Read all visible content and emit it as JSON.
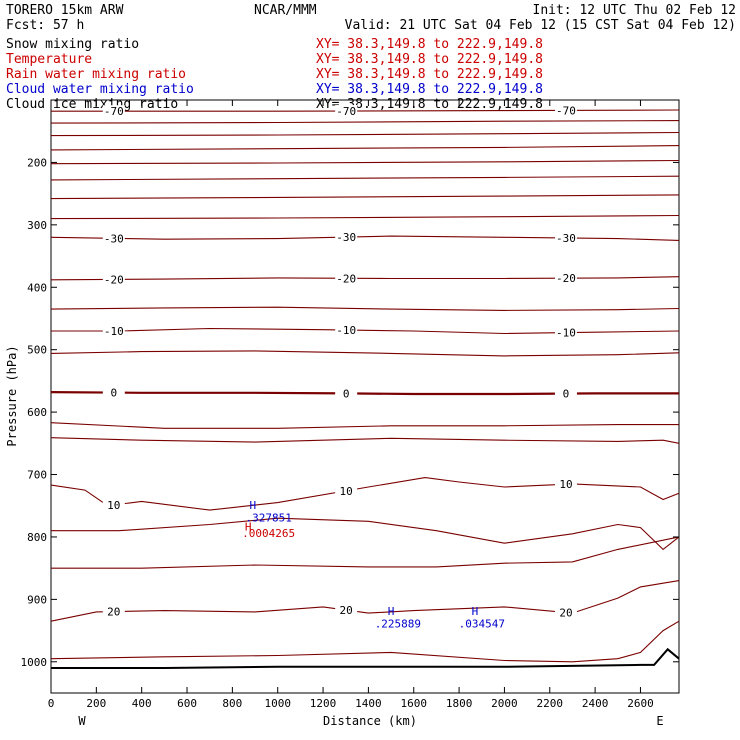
{
  "header": {
    "model": "TORERO  15km ARW",
    "center": "NCAR/MMM",
    "init": "Init: 12 UTC Thu 02 Feb 12",
    "fcst": "Fcst:   57 h",
    "valid": "Valid: 21 UTC Sat 04 Feb 12 (15 CST Sat 04 Feb 12)"
  },
  "fields": [
    {
      "name": "Snow mixing ratio",
      "xy": "XY=  38.3,149.8 to 222.9,149.8",
      "color": "#000000"
    },
    {
      "name": "Temperature",
      "xy": "XY=  38.3,149.8 to 222.9,149.8",
      "color": "#cc0000"
    },
    {
      "name": "Rain water mixing ratio",
      "xy": "XY=  38.3,149.8 to 222.9,149.8",
      "color": "#cc0000"
    },
    {
      "name": "Cloud water mixing ratio",
      "xy": "XY=  38.3,149.8 to 222.9,149.8",
      "color": "#0000cc"
    },
    {
      "name": "Cloud ice mixing ratio",
      "xy": "XY=  38.3,149.8 to 222.9,149.8",
      "color": "#000000"
    }
  ],
  "chart_data": {
    "type": "line",
    "xlabel": "Distance (km)",
    "ylabel": "Pressure (hPa)",
    "xlim": [
      0,
      2770
    ],
    "ylim": [
      1050,
      100
    ],
    "x_ticks": [
      0,
      200,
      400,
      600,
      800,
      1000,
      1200,
      1400,
      1600,
      1800,
      2000,
      2200,
      2400,
      2600
    ],
    "y_ticks": [
      200,
      300,
      400,
      500,
      600,
      700,
      800,
      900,
      1000
    ],
    "left_end_label": "W",
    "right_end_label": "E",
    "colors": {
      "temperature": "#7a0000",
      "cloud_water": "#0000cc",
      "rain": "#cc0000",
      "terrain": "#000000"
    },
    "temperature_contours": [
      {
        "value": -70,
        "points": [
          [
            0,
            118
          ],
          [
            1000,
            118
          ],
          [
            2000,
            117
          ],
          [
            2770,
            116
          ]
        ]
      },
      {
        "value": null,
        "points": [
          [
            0,
            137
          ],
          [
            1000,
            136
          ],
          [
            2000,
            134
          ],
          [
            2770,
            133
          ]
        ]
      },
      {
        "value": null,
        "points": [
          [
            0,
            157
          ],
          [
            1000,
            156
          ],
          [
            2000,
            154
          ],
          [
            2770,
            152
          ]
        ]
      },
      {
        "value": null,
        "points": [
          [
            0,
            180
          ],
          [
            1000,
            178
          ],
          [
            2000,
            176
          ],
          [
            2770,
            173
          ]
        ]
      },
      {
        "value": null,
        "points": [
          [
            0,
            202
          ],
          [
            1000,
            201
          ],
          [
            2000,
            199
          ],
          [
            2770,
            197
          ]
        ]
      },
      {
        "value": null,
        "points": [
          [
            0,
            228
          ],
          [
            1000,
            226
          ],
          [
            2000,
            224
          ],
          [
            2770,
            222
          ]
        ]
      },
      {
        "value": null,
        "points": [
          [
            0,
            258
          ],
          [
            1000,
            256
          ],
          [
            2000,
            254
          ],
          [
            2770,
            252
          ]
        ]
      },
      {
        "value": null,
        "points": [
          [
            0,
            290
          ],
          [
            1000,
            289
          ],
          [
            2000,
            287
          ],
          [
            2770,
            285
          ]
        ]
      },
      {
        "value": -30,
        "points": [
          [
            0,
            320
          ],
          [
            500,
            323
          ],
          [
            1000,
            322
          ],
          [
            1500,
            318
          ],
          [
            2000,
            320
          ],
          [
            2500,
            322
          ],
          [
            2770,
            325
          ]
        ]
      },
      {
        "value": -20,
        "points": [
          [
            0,
            388
          ],
          [
            500,
            387
          ],
          [
            1000,
            385
          ],
          [
            1500,
            386
          ],
          [
            2000,
            386
          ],
          [
            2500,
            385
          ],
          [
            2770,
            383
          ]
        ]
      },
      {
        "value": null,
        "points": [
          [
            0,
            435
          ],
          [
            500,
            433
          ],
          [
            1000,
            432
          ],
          [
            1500,
            435
          ],
          [
            2000,
            437
          ],
          [
            2500,
            436
          ],
          [
            2770,
            434
          ]
        ]
      },
      {
        "value": -10,
        "points": [
          [
            0,
            470
          ],
          [
            300,
            470
          ],
          [
            700,
            466
          ],
          [
            1200,
            468
          ],
          [
            1600,
            470
          ],
          [
            2000,
            474
          ],
          [
            2400,
            472
          ],
          [
            2770,
            470
          ]
        ]
      },
      {
        "value": null,
        "points": [
          [
            0,
            506
          ],
          [
            400,
            503
          ],
          [
            900,
            502
          ],
          [
            1500,
            506
          ],
          [
            2000,
            510
          ],
          [
            2500,
            508
          ],
          [
            2770,
            505
          ]
        ]
      },
      {
        "value": 0,
        "points": [
          [
            0,
            568
          ],
          [
            400,
            569
          ],
          [
            900,
            569
          ],
          [
            1300,
            570
          ],
          [
            1600,
            571
          ],
          [
            2000,
            571
          ],
          [
            2400,
            570
          ],
          [
            2770,
            570
          ]
        ]
      },
      {
        "value": null,
        "points": [
          [
            0,
            617
          ],
          [
            500,
            626
          ],
          [
            1000,
            626
          ],
          [
            1500,
            622
          ],
          [
            2000,
            622
          ],
          [
            2500,
            620
          ],
          [
            2770,
            620
          ]
        ]
      },
      {
        "value": null,
        "points": [
          [
            0,
            641
          ],
          [
            400,
            645
          ],
          [
            900,
            648
          ],
          [
            1500,
            642
          ],
          [
            2000,
            645
          ],
          [
            2500,
            647
          ],
          [
            2700,
            645
          ],
          [
            2770,
            650
          ]
        ]
      },
      {
        "value": 10,
        "points": [
          [
            0,
            717
          ],
          [
            150,
            725
          ],
          [
            250,
            750
          ],
          [
            400,
            743
          ],
          [
            700,
            757
          ],
          [
            1000,
            745
          ],
          [
            1400,
            720
          ],
          [
            1650,
            705
          ],
          [
            1800,
            712
          ],
          [
            2000,
            720
          ],
          [
            2300,
            715
          ],
          [
            2600,
            720
          ],
          [
            2700,
            740
          ],
          [
            2770,
            730
          ]
        ]
      },
      {
        "value": null,
        "points": [
          [
            0,
            790
          ],
          [
            300,
            790
          ],
          [
            700,
            780
          ],
          [
            1000,
            770
          ],
          [
            1400,
            775
          ],
          [
            1700,
            790
          ],
          [
            2000,
            810
          ],
          [
            2300,
            795
          ],
          [
            2500,
            780
          ],
          [
            2600,
            785
          ],
          [
            2700,
            820
          ],
          [
            2770,
            800
          ]
        ]
      },
      {
        "value": null,
        "points": [
          [
            0,
            850
          ],
          [
            400,
            850
          ],
          [
            900,
            845
          ],
          [
            1400,
            848
          ],
          [
            1700,
            848
          ],
          [
            2000,
            842
          ],
          [
            2300,
            840
          ],
          [
            2500,
            820
          ],
          [
            2770,
            800
          ]
        ]
      },
      {
        "value": 20,
        "points": [
          [
            0,
            935
          ],
          [
            200,
            920
          ],
          [
            500,
            918
          ],
          [
            900,
            920
          ],
          [
            1200,
            912
          ],
          [
            1400,
            922
          ],
          [
            1600,
            918
          ],
          [
            2000,
            912
          ],
          [
            2300,
            922
          ],
          [
            2500,
            898
          ],
          [
            2600,
            880
          ],
          [
            2770,
            870
          ]
        ]
      },
      {
        "value": null,
        "points": [
          [
            0,
            995
          ],
          [
            500,
            992
          ],
          [
            1000,
            990
          ],
          [
            1500,
            985
          ],
          [
            2000,
            998
          ],
          [
            2300,
            1000
          ],
          [
            2500,
            995
          ],
          [
            2600,
            985
          ],
          [
            2700,
            950
          ],
          [
            2770,
            935
          ]
        ]
      }
    ],
    "cloud_water_labels": [
      {
        "text": "H",
        "x": 890,
        "p": 755
      },
      {
        "text": ".327851",
        "x": 960,
        "p": 775
      },
      {
        "text": "H",
        "x": 1500,
        "p": 925
      },
      {
        "text": ".225889",
        "x": 1530,
        "p": 945
      },
      {
        "text": "H",
        "x": 1870,
        "p": 925
      },
      {
        "text": ".034547",
        "x": 1900,
        "p": 945
      }
    ],
    "rain_labels": [
      {
        "text": "H",
        "x": 870,
        "p": 790
      },
      {
        "text": ".0004265",
        "x": 960,
        "p": 800
      }
    ],
    "terrain": [
      [
        0,
        1010
      ],
      [
        500,
        1010
      ],
      [
        1000,
        1008
      ],
      [
        2000,
        1008
      ],
      [
        2600,
        1005
      ],
      [
        2660,
        1005
      ],
      [
        2720,
        980
      ],
      [
        2770,
        995
      ]
    ]
  }
}
